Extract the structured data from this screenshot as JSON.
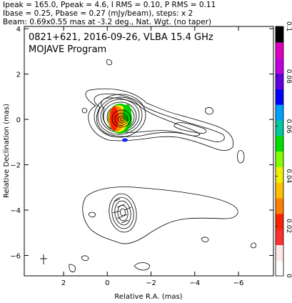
{
  "header": {
    "line1": "Ipeak = 165.0, Ppeak = 4.6, I RMS = 0.10, P RMS = 0.11",
    "line2": "Ibase = 0.25, Pbase = 0.27 (mJy/beam), steps: x 2",
    "line3": "Beam: 0.69x0.55 mas at -3.2 deg., Nat. Wgt. (no taper)"
  },
  "plot_title": "0821+621, 2016-09-26, VLBA 15.4 GHz",
  "plot_subtitle": "MOJAVE Program",
  "chart_data": {
    "type": "contour",
    "xlabel": "Relative R.A. (mas)",
    "ylabel": "Relative Declination (mas)",
    "xlim": [
      3.8,
      -7.6
    ],
    "ylim": [
      -6.9,
      4.1
    ],
    "x_ticks": [
      2,
      0,
      -2,
      -4,
      -6
    ],
    "y_ticks": [
      4,
      2,
      0,
      -2,
      -4,
      -6
    ],
    "x_tick_labels": [
      "2",
      "0",
      "−2",
      "−4",
      "−6"
    ],
    "y_tick_labels": [
      "4",
      "2",
      "0",
      "−2",
      "−4",
      "−6"
    ],
    "total_intensity_mJy_per_beam": {
      "peak": 165.0,
      "rms": 0.1,
      "base": 0.25,
      "step_factor": 2
    },
    "polarized_intensity_mJy_per_beam": {
      "peak": 4.6,
      "rms": 0.11,
      "base": 0.27
    },
    "beam": {
      "major_mas": 0.69,
      "minor_mas": 0.55,
      "pa_deg": -3.2,
      "weighting": "Natural",
      "taper": "none"
    },
    "core": {
      "ra": -0.7,
      "dec": -0.1
    },
    "components": [
      {
        "ra": -0.7,
        "dec": -0.1,
        "note": "core"
      },
      {
        "ra": -0.9,
        "dec": -4.3,
        "note": "southern component"
      }
    ],
    "colorbar": {
      "ticks": [
        0,
        0.02,
        0.04,
        0.06,
        0.08,
        0.1
      ],
      "tick_labels": [
        "0",
        "0.02",
        "0.04",
        "0.06",
        "0.08",
        "0.1"
      ],
      "colors": [
        "#ffffff",
        "#ffe8e8",
        "#ff3030",
        "#ff2000",
        "#ff8000",
        "#ffc000",
        "#f0f000",
        "#80ff00",
        "#00e000",
        "#00c8a0",
        "#00a0ff",
        "#0000ff",
        "#6000e0",
        "#c000e0",
        "#e000c0",
        "#000000"
      ]
    }
  }
}
